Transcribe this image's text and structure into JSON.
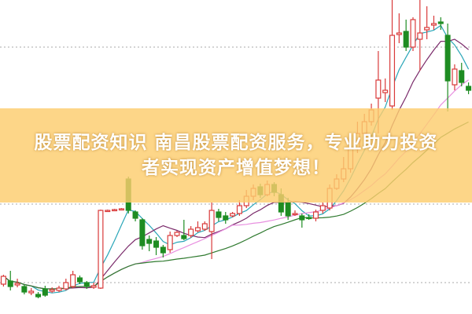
{
  "banner": {
    "line1": "股票配资知识 南昌股票配资服务，专业助力投资",
    "line2": "者实现资产增值梦想！"
  },
  "colors": {
    "up": "#d93a3a",
    "down": "#1e8c22",
    "banner": "#fcc96a",
    "grid": "#aaaaaa"
  },
  "chart_data": {
    "type": "candlestick",
    "title": "",
    "xlabel": "",
    "ylabel": "",
    "grid": "dotted horizontal",
    "ylim": [
      0,
      400
    ],
    "ohlc": [
      [
        38,
        50,
        35,
        48
      ],
      [
        42,
        55,
        30,
        35
      ],
      [
        37,
        45,
        34,
        39
      ],
      [
        35,
        38,
        25,
        28
      ],
      [
        27,
        33,
        24,
        29
      ],
      [
        25,
        28,
        20,
        22
      ],
      [
        32,
        36,
        22,
        24
      ],
      [
        29,
        34,
        27,
        31
      ],
      [
        30,
        36,
        28,
        33
      ],
      [
        32,
        45,
        30,
        40
      ],
      [
        35,
        55,
        33,
        50
      ],
      [
        46,
        49,
        38,
        41
      ],
      [
        40,
        42,
        32,
        35
      ],
      [
        34,
        40,
        32,
        36
      ],
      [
        33,
        133,
        32,
        132
      ],
      [
        132,
        133,
        131,
        132
      ],
      [
        132,
        134,
        131,
        133
      ],
      [
        133,
        135,
        132,
        134
      ],
      [
        172,
        175,
        128,
        132
      ],
      [
        130,
        132,
        118,
        122
      ],
      [
        120,
        122,
        82,
        87
      ],
      [
        95,
        100,
        80,
        90
      ],
      [
        93,
        98,
        75,
        85
      ],
      [
        85,
        88,
        72,
        78
      ],
      [
        82,
        105,
        78,
        100
      ],
      [
        100,
        106,
        98,
        104
      ],
      [
        100,
        120,
        94,
        96
      ],
      [
        100,
        112,
        97,
        108
      ],
      [
        106,
        118,
        104,
        110
      ],
      [
        108,
        118,
        106,
        115
      ],
      [
        105,
        142,
        70,
        132
      ],
      [
        130,
        134,
        118,
        123
      ],
      [
        125,
        130,
        115,
        120
      ],
      [
        125,
        130,
        123,
        128
      ],
      [
        128,
        145,
        125,
        138
      ],
      [
        138,
        158,
        135,
        150
      ],
      [
        150,
        165,
        145,
        160
      ],
      [
        162,
        166,
        148,
        152
      ],
      [
        152,
        170,
        150,
        165
      ],
      [
        165,
        168,
        150,
        155
      ],
      [
        152,
        160,
        125,
        130
      ],
      [
        142,
        148,
        120,
        125
      ],
      [
        127,
        132,
        125,
        128
      ],
      [
        125,
        128,
        110,
        120
      ],
      [
        123,
        127,
        120,
        122
      ],
      [
        122,
        133,
        118,
        130
      ],
      [
        132,
        142,
        128,
        138
      ],
      [
        135,
        165,
        132,
        160
      ],
      [
        160,
        178,
        158,
        172
      ],
      [
        172,
        200,
        168,
        185
      ],
      [
        185,
        230,
        180,
        210
      ],
      [
        210,
        245,
        205,
        230
      ],
      [
        230,
        255,
        225,
        245
      ],
      [
        245,
        268,
        240,
        260
      ],
      [
        275,
        335,
        230,
        298
      ],
      [
        282,
        300,
        270,
        285
      ],
      [
        265,
        400,
        260,
        355
      ],
      [
        356,
        383,
        345,
        358
      ],
      [
        360,
        375,
        335,
        340
      ],
      [
        340,
        378,
        335,
        375
      ],
      [
        350,
        400,
        310,
        358
      ],
      [
        362,
        392,
        350,
        365
      ],
      [
        368,
        380,
        362,
        370
      ],
      [
        372,
        378,
        362,
        370
      ],
      [
        355,
        370,
        258,
        297
      ],
      [
        292,
        318,
        285,
        312
      ],
      [
        310,
        320,
        290,
        295
      ],
      [
        290,
        295,
        280,
        285
      ]
    ],
    "moving_averages": [
      {
        "period": 5,
        "color": "#2aa6b8"
      },
      {
        "period": 10,
        "color": "#7a2a6a"
      },
      {
        "period": 20,
        "color": "#e890e0"
      },
      {
        "period": 30,
        "color": "#2f7a2f"
      }
    ]
  }
}
